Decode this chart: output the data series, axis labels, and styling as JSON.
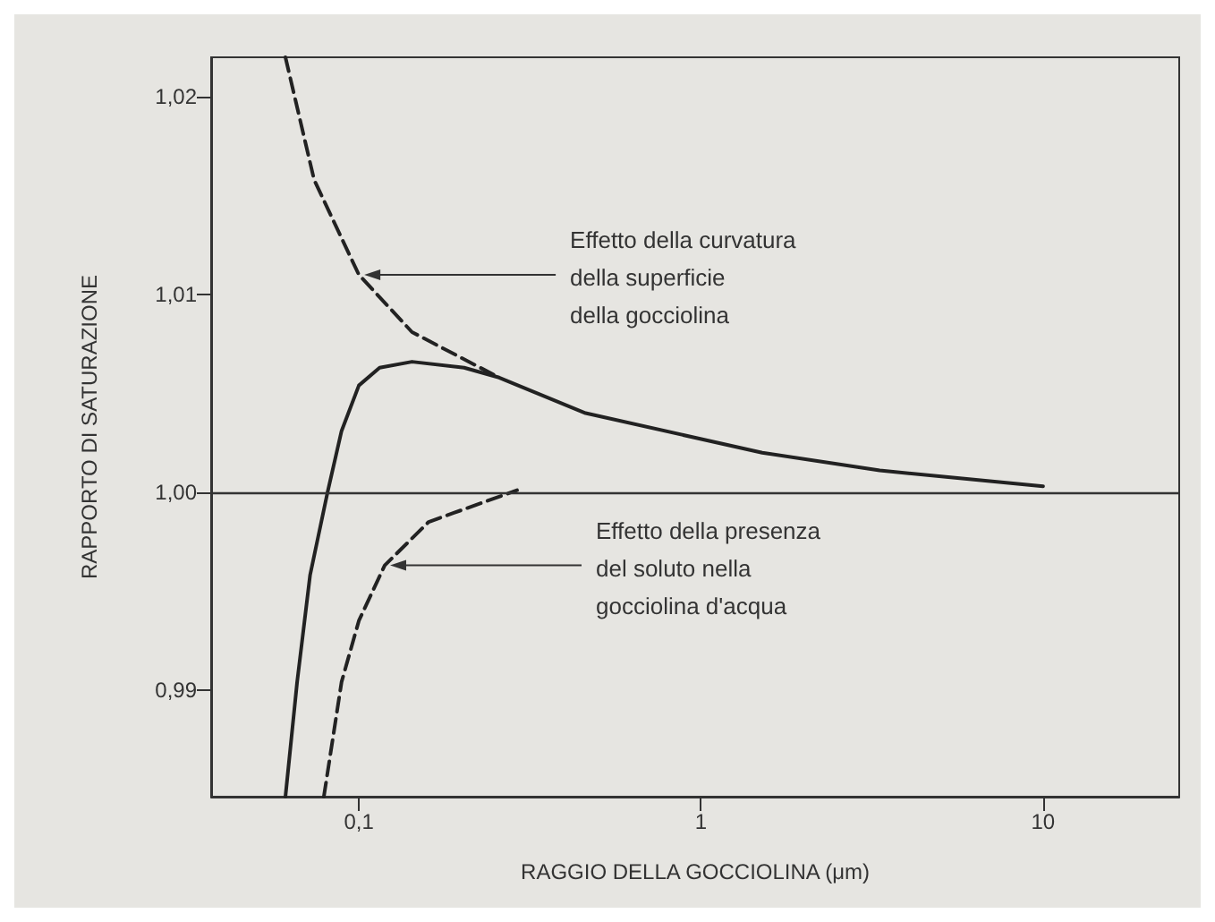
{
  "chart_data": {
    "type": "line",
    "xlabel": "RAGGIO DELLA GOCCIOLINA (μm)",
    "ylabel": "RAPPORTO DI SATURAZIONE",
    "log": "x",
    "grid": false,
    "marker": "none",
    "xlim": [
      0.037,
      25
    ],
    "xticks": [
      {
        "value": 0.1,
        "label": "0,1"
      },
      1,
      10
    ],
    "ylim": [
      0.9846,
      1.022
    ],
    "yticks": [
      {
        "value": 0.99,
        "label": "0,99"
      },
      {
        "value": 1.0,
        "label": "1,00"
      },
      {
        "value": 1.01,
        "label": "1,01"
      },
      {
        "value": 1.02,
        "label": "1,02"
      }
    ],
    "series": [
      {
        "color": "#222222",
        "line_style": "solid",
        "x": [
          0.061,
          0.066,
          0.072,
          0.081,
          0.089,
          0.1,
          0.115,
          0.143,
          0.203,
          0.257,
          0.46,
          1.51,
          3.33,
          10
        ],
        "values": [
          0.9846,
          0.9904,
          0.9958,
          1.0,
          1.0031,
          1.0054,
          1.0063,
          1.0066,
          1.0063,
          1.0058,
          1.004,
          1.002,
          1.0011,
          1.0003
        ]
      },
      {
        "color": "#222222",
        "line_style": "dashed",
        "x": [
          0.061,
          0.074,
          0.1,
          0.143,
          0.257
        ],
        "values": [
          1.022,
          1.0158,
          1.011,
          1.0081,
          1.0058
        ]
      },
      {
        "color": "#222222",
        "line_style": "dashed",
        "x": [
          0.079,
          0.089,
          0.1,
          0.119,
          0.16,
          0.29
        ],
        "values": [
          0.9846,
          0.9904,
          0.9935,
          0.9963,
          0.9985,
          1.0001
        ]
      }
    ],
    "ref_lines": [
      {
        "axis": "y",
        "value": 1.0,
        "label": null,
        "color": "#333333"
      }
    ],
    "annotations": [
      {
        "text": "Effetto della curvatura\ndella superficie\ndella gocciolina",
        "x": 0.1,
        "y": 1.011
      },
      {
        "text": "Effetto della presenza\ndel soluto nella\ngocciolina d'acqua",
        "x": 0.119,
        "y": 0.9963
      }
    ]
  }
}
